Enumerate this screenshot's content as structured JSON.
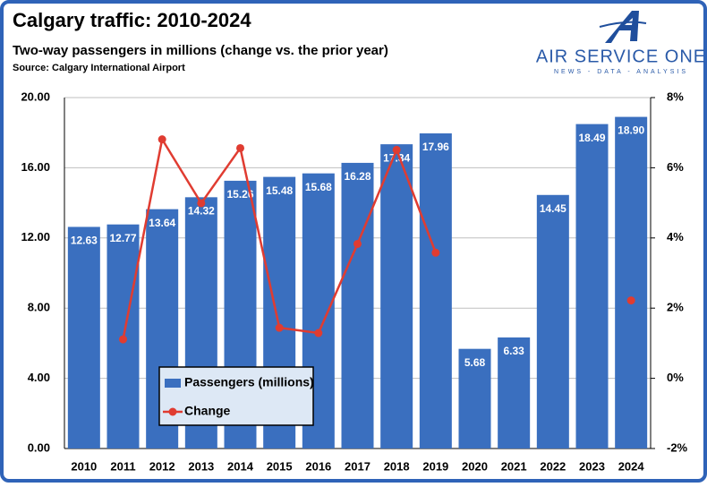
{
  "chart_data": {
    "type": "bar_line",
    "title": "Calgary traffic: 2010-2024",
    "subtitle": "Two-way passengers in millions (change vs. the prior year)",
    "source": "Source: Calgary International Airport",
    "categories": [
      "2010",
      "2011",
      "2012",
      "2013",
      "2014",
      "2015",
      "2016",
      "2017",
      "2018",
      "2019",
      "2020",
      "2021",
      "2022",
      "2023",
      "2024"
    ],
    "series": [
      {
        "name": "Passengers (millions)",
        "color": "#3a6fbf",
        "values": [
          12.63,
          12.77,
          13.64,
          14.32,
          15.26,
          15.48,
          15.68,
          16.28,
          17.34,
          17.96,
          5.68,
          6.33,
          14.45,
          18.49,
          18.9
        ],
        "value_labels": [
          "12.63",
          "12.77",
          "13.64",
          "14.32",
          "15.26",
          "15.48",
          "15.68",
          "16.28",
          "17.34",
          "17.96",
          "5.68",
          "6.33",
          "14.45",
          "18.49",
          "18.90"
        ]
      },
      {
        "name": "Change",
        "color": "#e03c31",
        "axis": "y2",
        "values": [
          null,
          1.11,
          6.81,
          4.99,
          6.56,
          1.44,
          1.29,
          3.83,
          6.51,
          3.58,
          null,
          null,
          null,
          null,
          2.22
        ]
      }
    ],
    "ylim": [
      0,
      20
    ],
    "yticks": [
      {
        "value": 0,
        "label": "0.00"
      },
      {
        "value": 4,
        "label": "4.00"
      },
      {
        "value": 8,
        "label": "8.00"
      },
      {
        "value": 12,
        "label": "12.00"
      },
      {
        "value": 16,
        "label": "16.00"
      },
      {
        "value": 20,
        "label": "20.00"
      }
    ],
    "y2lim": [
      -2,
      8
    ],
    "y2ticks": [
      {
        "value": -2,
        "label": "-2%"
      },
      {
        "value": 0,
        "label": "0%"
      },
      {
        "value": 2,
        "label": "2%"
      },
      {
        "value": 4,
        "label": "4%"
      },
      {
        "value": 6,
        "label": "6%"
      },
      {
        "value": 8,
        "label": "8%"
      }
    ],
    "grid": true
  },
  "logo": {
    "name": "AIR SERVICE ONE",
    "tagline": "NEWS - DATA - ANALYSIS"
  }
}
